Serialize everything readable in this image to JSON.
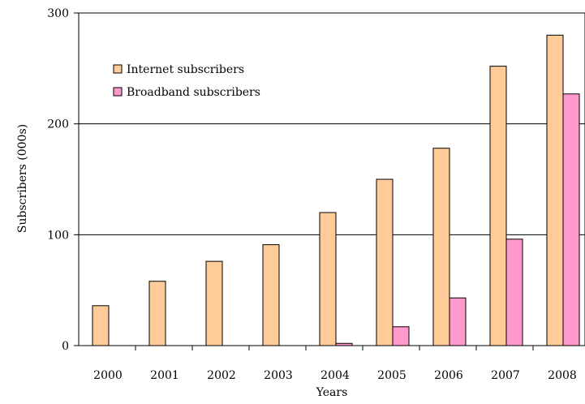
{
  "chart_data": {
    "type": "bar",
    "title": "",
    "xlabel": "Years",
    "ylabel": "Subscribers (000s)",
    "categories": [
      "2000",
      "2001",
      "2002",
      "2003",
      "2004",
      "2005",
      "2006",
      "2007",
      "2008"
    ],
    "series": [
      {
        "name": "Internet subscribers",
        "color": "#FFCC99",
        "values": [
          36,
          58,
          76,
          91,
          120,
          150,
          178,
          252,
          280
        ]
      },
      {
        "name": "Broadband subscribers",
        "color": "#FF99CC",
        "values": [
          0,
          0,
          0,
          0,
          2,
          17,
          43,
          96,
          227
        ]
      }
    ],
    "ylim": [
      0,
      300
    ],
    "yticks": [
      "0",
      "100",
      "200",
      "300"
    ],
    "grid": true,
    "legend_position": "top-left"
  }
}
